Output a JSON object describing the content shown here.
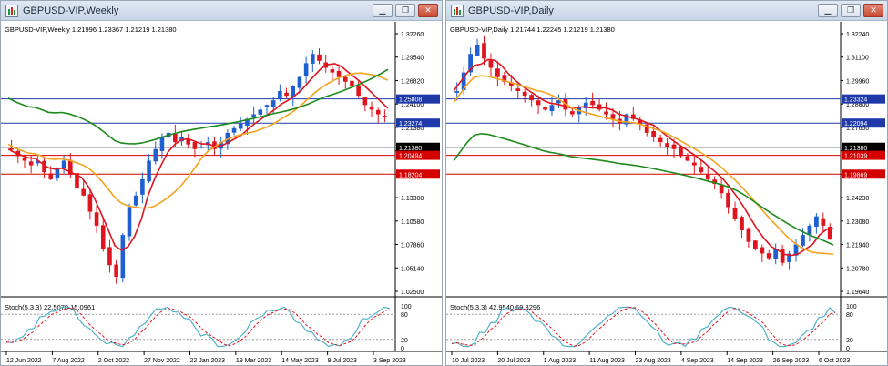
{
  "left_window": {
    "title": "GBPUSD-VIP,Weekly",
    "chart_info": "GBPUSD-VIP,Weekly  1.21996 1.23367 1.21219 1.21380",
    "price_ticks": [
      "1.32260",
      "1.29540",
      "1.26820",
      "1.24100",
      "1.21380",
      "1.18660",
      "1.16020",
      "1.13300",
      "1.10580",
      "1.07860",
      "1.05140",
      "1.02500"
    ],
    "price_levels": [
      {
        "label": "1.25808",
        "color": "#1f3aa8"
      },
      {
        "label": "1.23274",
        "color": "#1f3aa8"
      },
      {
        "label": "1.21380",
        "color": "#000000"
      },
      {
        "label": "1.20494",
        "color": "#d40000"
      },
      {
        "label": "1.18204",
        "color": "#d40000"
      }
    ],
    "stoch_label": "Stoch(5,3,3) 22.5070 15.0961",
    "stoch_ticks": [
      "100",
      "80",
      "20",
      "0"
    ],
    "date_ticks": [
      "12 Jun 2022",
      "7 Aug 2022",
      "2 Oct 2022",
      "27 Nov 2022",
      "22 Jan 2023",
      "19 Mar 2023",
      "14 May 2023",
      "9 Jul 2023",
      "3 Sep 2023"
    ]
  },
  "right_window": {
    "title": "GBPUSD-VIP,Daily",
    "chart_info": "GBPUSD-VIP,Daily  1.21744 1.22245 1.21219 1.21380",
    "price_ticks": [
      "1.32240",
      "1.31100",
      "1.29960",
      "1.28800",
      "1.27650",
      "1.26510",
      "1.25370",
      "1.24230",
      "1.23080",
      "1.21940",
      "1.20780",
      "1.19640"
    ],
    "price_levels": [
      {
        "label": "1.23324",
        "color": "#1f3aa8"
      },
      {
        "label": "1.22094",
        "color": "#1f3aa8"
      },
      {
        "label": "1.21380",
        "color": "#000000"
      },
      {
        "label": "1.21039",
        "color": "#d40000"
      },
      {
        "label": "1.19869",
        "color": "#d40000"
      }
    ],
    "stoch_label": "Stoch(5,3,3) 42.9540 69.3296",
    "stoch_ticks": [
      "100",
      "80",
      "20",
      "0"
    ],
    "date_ticks": [
      "10 Jul 2023",
      "20 Jul 2023",
      "1 Aug 2023",
      "11 Aug 2023",
      "23 Aug 2023",
      "4 Sep 2023",
      "14 Sep 2023",
      "26 Sep 2023",
      "6 Oct 2023"
    ]
  },
  "colors": {
    "bull": "#1f5fd0",
    "bear": "#e0141e",
    "ma_fast": "#e0141e",
    "ma_mid": "#f5a21d",
    "ma_slow": "#1d8a1d",
    "stoch_main": "#4fb3c9",
    "stoch_signal": "#e0141e"
  },
  "icons": {
    "app": "chart-app-icon",
    "minimize": "minimize-icon",
    "restore": "restore-icon",
    "close": "close-icon"
  }
}
